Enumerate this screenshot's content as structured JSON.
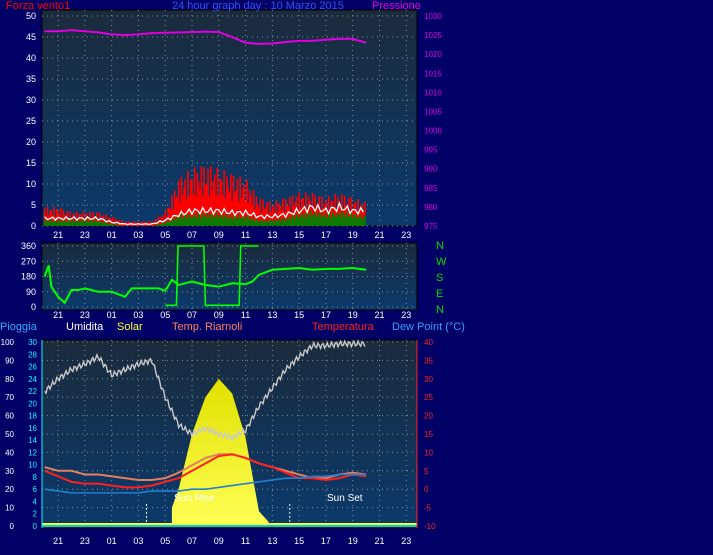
{
  "colors": {
    "page_background": "#000066",
    "plot_background_top": "#1b2b3c",
    "plot_background_bottom": "#0b3a6c",
    "grid": "#8090a0",
    "tick_text": "#ffffff",
    "wind": "#ff0000",
    "wind_avg": "#ffffff",
    "wind_low": "#008000",
    "pressure": "#e000e0",
    "direction": "#00ff00",
    "direction_labels": "#00dd00",
    "rain_axis": "#ffffff",
    "humidity_axis": "#00ffff",
    "humidity": "#c8c8c8",
    "solar": "#ffff33",
    "temp_soil": "#e08060",
    "temperature": "#ff2020",
    "dew_point": "#2080d0",
    "sun_text": "#ffffff"
  },
  "title": "24 hour graph day : 10 Marzo 2015",
  "x_tick_labels": [
    "21",
    "23",
    "01",
    "03",
    "05",
    "07",
    "09",
    "11",
    "13",
    "15",
    "17",
    "19",
    "21",
    "23"
  ],
  "top_panel": {
    "left_title": "Forza vento1",
    "right_title": "Pressione",
    "left_ticks": [
      "0",
      "5",
      "10",
      "15",
      "20",
      "25",
      "30",
      "35",
      "40",
      "45",
      "50"
    ],
    "right_ticks": [
      "975",
      "980",
      "985",
      "990",
      "995",
      "1000",
      "1005",
      "1010",
      "1015",
      "1020",
      "1025",
      "1030"
    ]
  },
  "mid_panel": {
    "left_ticks": [
      "0",
      "90",
      "180",
      "270",
      "360"
    ],
    "compass_labels": [
      "N",
      "W",
      "S",
      "E",
      "N"
    ]
  },
  "bottom_panel": {
    "legend": {
      "rain": "Pioggia",
      "humidity": "Umidita",
      "solar": "Solar",
      "soil": "Temp. Riarnoli",
      "temperature": "Temperatura",
      "dew_point": "Dew Point (°C)"
    },
    "rain_ticks": [
      "0",
      "10",
      "20",
      "30",
      "40",
      "50",
      "60",
      "70",
      "80",
      "90",
      "100"
    ],
    "humidity_ticks": [
      "0",
      "2",
      "4",
      "6",
      "8",
      "10",
      "12",
      "14",
      "16",
      "18",
      "20",
      "22",
      "24",
      "26",
      "28",
      "30"
    ],
    "temp_ticks": [
      "-10",
      "-5",
      "0",
      "5",
      "10",
      "15",
      "20",
      "25",
      "30",
      "35",
      "40"
    ],
    "sun_rise_label": "Sun Rise",
    "sun_set_label": "Sun Set"
  },
  "chart_data": [
    {
      "type": "line",
      "x_unit": "hour",
      "x": [
        20,
        21,
        22,
        23,
        24,
        25,
        26,
        27,
        28,
        29,
        30,
        31,
        32,
        33,
        34,
        35,
        36,
        37,
        38,
        39,
        40,
        41,
        42,
        43,
        44
      ],
      "series": [
        {
          "name": "Forza vento1",
          "axis": "left",
          "values": [
            4,
            4,
            3,
            3,
            3,
            2,
            1,
            1,
            1,
            3,
            10,
            12,
            13,
            12,
            11,
            10,
            6,
            5,
            6,
            7,
            7,
            6,
            7,
            6,
            5
          ]
        },
        {
          "axis": "left",
          "values": [
            2,
            2,
            2,
            2,
            2,
            1,
            0.5,
            0.5,
            0.5,
            1.5,
            3,
            4,
            4,
            4,
            3.5,
            3.5,
            2.5,
            2.5,
            3,
            4,
            5,
            4,
            5,
            4,
            4
          ]
        },
        {
          "axis": "left",
          "values": [
            1.5,
            1.5,
            1.5,
            1.5,
            1.5,
            0.5,
            0,
            0,
            0,
            1,
            2.5,
            3,
            3,
            3,
            2.5,
            2.5,
            1.5,
            1.5,
            2,
            3,
            3.5,
            3,
            3.5,
            3,
            2.5
          ]
        },
        {
          "name": "Pressione",
          "axis": "right",
          "values": [
            1026,
            1026,
            1026.3,
            1026,
            1025.7,
            1025.2,
            1025,
            1025.2,
            1025.5,
            1025.6,
            1025.7,
            1025.8,
            1025.9,
            1025.8,
            1024.5,
            1023,
            1022.7,
            1022.8,
            1023.2,
            1023.5,
            1023.5,
            1023.8,
            1024,
            1024,
            1023
          ]
        }
      ],
      "left_ylim": [
        0,
        50
      ],
      "right_ylim": [
        975,
        1030
      ],
      "grid": true
    },
    {
      "type": "line",
      "x_unit": "hour",
      "x": [
        20,
        20.3,
        20.5,
        21,
        21.5,
        22,
        22.5,
        23,
        24,
        25,
        26,
        26.5,
        27,
        28,
        28.5,
        29,
        29.5,
        30,
        31,
        32,
        33,
        34,
        35,
        35.5,
        36,
        37,
        38,
        39,
        40,
        41,
        42,
        43,
        44
      ],
      "series": [
        {
          "values": [
            180,
            245,
            120,
            60,
            25,
            100,
            100,
            110,
            90,
            90,
            60,
            110,
            110,
            110,
            110,
            95,
            160,
            130,
            150,
            130,
            120,
            140,
            135,
            150,
            190,
            220,
            225,
            230,
            220,
            225,
            225,
            230,
            220
          ]
        }
      ],
      "ylim": [
        0,
        360
      ],
      "grid": true
    },
    {
      "type": "line",
      "x_unit": "hour",
      "x": [
        20,
        21,
        22,
        23,
        24,
        25,
        26,
        27,
        28,
        29,
        30,
        31,
        32,
        33,
        34,
        35,
        36,
        37,
        38,
        39,
        40,
        41,
        42,
        43,
        44
      ],
      "series": [
        {
          "name": "Pioggia",
          "axis": "rain",
          "values": [
            0,
            0,
            0,
            0,
            0,
            0,
            0,
            0,
            0,
            0,
            0,
            0,
            0,
            0,
            0,
            0,
            0,
            0,
            0,
            0,
            0,
            0,
            0,
            0,
            0
          ]
        },
        {
          "name": "Umidita",
          "axis": "humidity",
          "values": [
            73,
            80,
            85,
            88,
            92,
            82,
            85,
            88,
            90,
            70,
            55,
            50,
            53,
            50,
            48,
            52,
            65,
            75,
            85,
            92,
            98,
            98,
            99,
            99,
            99
          ]
        },
        {
          "name": "Solar",
          "axis": "rain",
          "values": [
            0,
            0,
            0,
            0,
            0,
            0,
            0,
            0,
            0,
            0,
            20,
            50,
            70,
            80,
            72,
            48,
            8,
            0,
            0,
            0,
            0,
            0,
            0,
            0,
            0
          ]
        },
        {
          "name": "Temp. Riarnoli",
          "axis": "temp",
          "values": [
            6,
            5,
            5,
            4,
            4,
            3.5,
            3,
            2.5,
            2.5,
            3,
            4.5,
            6.5,
            8.5,
            9.5,
            9.5,
            8.5,
            7,
            6,
            5,
            4,
            3,
            3,
            4,
            4.5,
            4
          ]
        },
        {
          "name": "Temperatura",
          "axis": "temp",
          "values": [
            5,
            3.5,
            2,
            1.5,
            1.5,
            1,
            0.5,
            0.5,
            1,
            2,
            3,
            5,
            7,
            9,
            9.5,
            8.5,
            7,
            6,
            4.5,
            3,
            3,
            2.5,
            3,
            4,
            3.5
          ]
        },
        {
          "name": "Dew Point (°C)",
          "axis": "temp",
          "values": [
            0,
            -0.5,
            -1,
            -1,
            -1,
            -1,
            -1,
            -1,
            -0.5,
            -0.5,
            -0.5,
            0,
            0,
            0.5,
            1,
            1.5,
            2,
            2.5,
            3,
            3,
            3.5,
            3.5,
            4,
            4,
            4
          ]
        }
      ],
      "rain_ylim": [
        0,
        100
      ],
      "humidity_ylim": [
        0,
        30
      ],
      "temp_ylim": [
        -10,
        40
      ],
      "grid": true
    }
  ]
}
